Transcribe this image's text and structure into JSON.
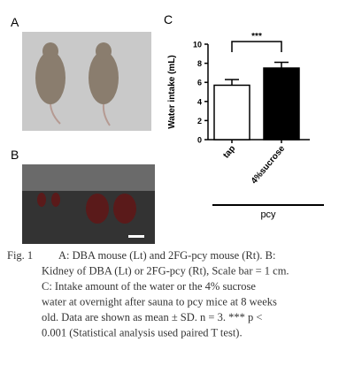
{
  "panels": {
    "a": "A",
    "b": "B"
  },
  "chart_data": {
    "type": "bar",
    "panel_label": "C",
    "y_label": "Water intake (mL)",
    "categories": [
      "tap",
      "4%sucrose"
    ],
    "values": [
      5.7,
      7.5
    ],
    "errors": [
      0.6,
      0.6
    ],
    "colors": [
      "#ffffff",
      "#000000"
    ],
    "ylim": [
      0,
      10
    ],
    "yticks": [
      0,
      2,
      4,
      6,
      8,
      10
    ],
    "annotation": "***",
    "group_label": "pcy"
  },
  "caption": {
    "label": "Fig. 1",
    "lines": [
      "A: DBA mouse (Lt) and 2FG-pcy mouse (Rt). B:",
      "Kidney of DBA (Lt) or 2FG-pcy (Rt), Scale bar = 1 cm.",
      "C: Intake amount of the water or the 4% sucrose",
      "water at overnight after sauna to pcy mice at 8 weeks",
      "old. Data are shown as mean ± SD. n = 3. *** p <",
      "0.001 (Statistical analysis used paired T test)."
    ]
  }
}
